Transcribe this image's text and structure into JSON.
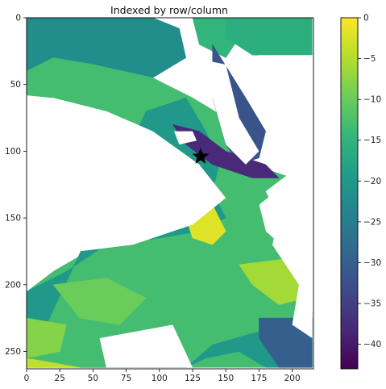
{
  "chart_data": {
    "type": "heatmap",
    "title": "Indexed by row/column",
    "xlabel": "",
    "ylabel": "",
    "x_range": [
      0,
      216
    ],
    "y_range": [
      263,
      0
    ],
    "x_ticks": [
      0,
      25,
      50,
      75,
      100,
      125,
      150,
      175,
      200
    ],
    "y_ticks": [
      0,
      50,
      100,
      150,
      200,
      250
    ],
    "colormap": "viridis",
    "color_range": [
      -43,
      0
    ],
    "colorbar_ticks": [
      0,
      -5,
      -10,
      -15,
      -20,
      -25,
      -30,
      -35,
      -40
    ],
    "colorbar_tick_labels": [
      "0",
      "−5",
      "−10",
      "−15",
      "−20",
      "−25",
      "−30",
      "−35",
      "−40"
    ],
    "marker": {
      "shape": "star",
      "x": 131,
      "y": 104,
      "color": "#000000"
    },
    "regions": [
      {
        "points": [
          [
            0,
            0
          ],
          [
            95,
            0
          ],
          [
            115,
            8
          ],
          [
            120,
            30
          ],
          [
            95,
            45
          ],
          [
            50,
            35
          ],
          [
            20,
            30
          ],
          [
            0,
            40
          ],
          [
            0,
            0
          ]
        ],
        "value": -22
      },
      {
        "points": [
          [
            125,
            0
          ],
          [
            150,
            0
          ],
          [
            160,
            15
          ],
          [
            150,
            30
          ],
          [
            130,
            20
          ],
          [
            125,
            0
          ]
        ],
        "value": -15
      },
      {
        "points": [
          [
            150,
            0
          ],
          [
            215,
            0
          ],
          [
            215,
            28
          ],
          [
            170,
            28
          ],
          [
            150,
            15
          ],
          [
            150,
            0
          ]
        ],
        "value": -16
      },
      {
        "points": [
          [
            0,
            40
          ],
          [
            20,
            30
          ],
          [
            50,
            35
          ],
          [
            95,
            45
          ],
          [
            125,
            60
          ],
          [
            150,
            75
          ],
          [
            165,
            90
          ],
          [
            170,
            110
          ],
          [
            200,
            120
          ],
          [
            175,
            140
          ],
          [
            180,
            160
          ],
          [
            200,
            178
          ],
          [
            195,
            200
          ],
          [
            215,
            220
          ],
          [
            215,
            262
          ],
          [
            0,
            262
          ],
          [
            0,
            205
          ],
          [
            20,
            190
          ],
          [
            55,
            170
          ],
          [
            120,
            160
          ],
          [
            150,
            135
          ],
          [
            130,
            110
          ],
          [
            95,
            85
          ],
          [
            60,
            70
          ],
          [
            20,
            60
          ],
          [
            0,
            58
          ],
          [
            0,
            40
          ]
        ],
        "value": -13
      },
      {
        "points": [
          [
            90,
            70
          ],
          [
            120,
            60
          ],
          [
            135,
            85
          ],
          [
            145,
            110
          ],
          [
            140,
            130
          ],
          [
            150,
            150
          ],
          [
            130,
            160
          ],
          [
            100,
            165
          ],
          [
            60,
            170
          ],
          [
            30,
            190
          ],
          [
            0,
            205
          ],
          [
            0,
            262
          ],
          [
            120,
            262
          ],
          [
            140,
            245
          ],
          [
            175,
            235
          ],
          [
            215,
            240
          ],
          [
            215,
            262
          ],
          [
            180,
            262
          ],
          [
            160,
            250
          ],
          [
            135,
            255
          ],
          [
            120,
            262
          ],
          [
            0,
            262
          ]
        ],
        "value": -20
      },
      {
        "points": [
          [
            140,
            20
          ],
          [
            165,
            60
          ],
          [
            180,
            85
          ],
          [
            175,
            105
          ],
          [
            160,
            110
          ],
          [
            150,
            95
          ],
          [
            140,
            60
          ],
          [
            140,
            20
          ]
        ],
        "value": -32
      },
      {
        "points": [
          [
            110,
            80
          ],
          [
            130,
            85
          ],
          [
            150,
            100
          ],
          [
            180,
            110
          ],
          [
            190,
            120
          ],
          [
            170,
            120
          ],
          [
            140,
            110
          ],
          [
            120,
            95
          ],
          [
            110,
            80
          ]
        ],
        "value": -38
      },
      {
        "points": [
          [
            120,
            150
          ],
          [
            140,
            140
          ],
          [
            150,
            160
          ],
          [
            140,
            170
          ],
          [
            125,
            165
          ],
          [
            120,
            150
          ]
        ],
        "value": -2
      },
      {
        "points": [
          [
            160,
            185
          ],
          [
            200,
            180
          ],
          [
            210,
            210
          ],
          [
            190,
            215
          ],
          [
            170,
            200
          ],
          [
            160,
            185
          ]
        ],
        "value": -6
      },
      {
        "points": [
          [
            20,
            200
          ],
          [
            60,
            195
          ],
          [
            90,
            210
          ],
          [
            70,
            230
          ],
          [
            40,
            225
          ],
          [
            20,
            200
          ]
        ],
        "value": -10
      },
      {
        "points": [
          [
            0,
            225
          ],
          [
            30,
            230
          ],
          [
            25,
            250
          ],
          [
            0,
            255
          ],
          [
            0,
            225
          ]
        ],
        "value": -8
      },
      {
        "points": [
          [
            175,
            225
          ],
          [
            215,
            225
          ],
          [
            215,
            262
          ],
          [
            190,
            262
          ],
          [
            175,
            240
          ],
          [
            175,
            225
          ]
        ],
        "value": -30
      },
      {
        "points": [
          [
            0,
            255
          ],
          [
            40,
            262
          ],
          [
            0,
            262
          ],
          [
            0,
            255
          ]
        ],
        "value": -4
      }
    ],
    "holes": [
      {
        "points": [
          [
            0,
            60
          ],
          [
            20,
            60
          ],
          [
            60,
            70
          ],
          [
            95,
            85
          ],
          [
            130,
            110
          ],
          [
            150,
            135
          ],
          [
            125,
            155
          ],
          [
            80,
            170
          ],
          [
            40,
            175
          ],
          [
            0,
            205
          ],
          [
            0,
            60
          ]
        ]
      },
      {
        "points": [
          [
            125,
            30
          ],
          [
            150,
            35
          ],
          [
            160,
            75
          ],
          [
            175,
            100
          ],
          [
            165,
            110
          ],
          [
            150,
            95
          ],
          [
            140,
            60
          ],
          [
            125,
            30
          ]
        ]
      },
      {
        "points": [
          [
            175,
            28
          ],
          [
            215,
            28
          ],
          [
            215,
            240
          ],
          [
            200,
            230
          ],
          [
            205,
            200
          ],
          [
            185,
            170
          ],
          [
            190,
            150
          ],
          [
            180,
            130
          ],
          [
            200,
            115
          ],
          [
            185,
            100
          ],
          [
            180,
            70
          ],
          [
            175,
            28
          ]
        ]
      },
      {
        "points": [
          [
            111,
            85
          ],
          [
            125,
            85
          ],
          [
            128,
            92
          ],
          [
            115,
            95
          ],
          [
            111,
            85
          ]
        ]
      },
      {
        "points": [
          [
            55,
            240
          ],
          [
            110,
            230
          ],
          [
            125,
            262
          ],
          [
            60,
            262
          ],
          [
            55,
            240
          ]
        ]
      }
    ]
  }
}
